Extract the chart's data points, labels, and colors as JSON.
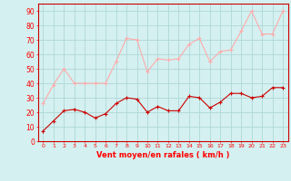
{
  "x": [
    0,
    1,
    2,
    3,
    4,
    5,
    6,
    7,
    8,
    9,
    10,
    11,
    12,
    13,
    14,
    15,
    16,
    17,
    18,
    19,
    20,
    21,
    22,
    23
  ],
  "wind_avg": [
    7,
    14,
    21,
    22,
    20,
    16,
    19,
    26,
    30,
    29,
    20,
    24,
    21,
    21,
    31,
    30,
    23,
    27,
    33,
    33,
    30,
    31,
    37,
    37
  ],
  "wind_gust": [
    26,
    39,
    50,
    40,
    40,
    40,
    40,
    55,
    71,
    70,
    48,
    57,
    56,
    57,
    67,
    71,
    55,
    62,
    63,
    76,
    90,
    74,
    74,
    90
  ],
  "avg_color": "#cc0000",
  "gust_color": "#ffaaaa",
  "bg_color": "#d4f0f0",
  "grid_color": "#b0d8d8",
  "xlabel": "Vent moyen/en rafales ( km/h )",
  "ylabel_ticks": [
    0,
    10,
    20,
    30,
    40,
    50,
    60,
    70,
    80,
    90
  ],
  "ylim": [
    0,
    95
  ],
  "xlim": [
    -0.5,
    23.5
  ]
}
